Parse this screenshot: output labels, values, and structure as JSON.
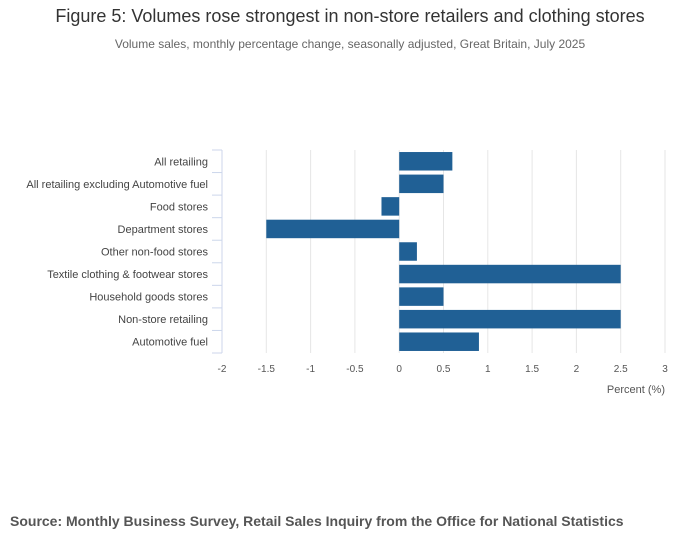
{
  "chart_data": {
    "type": "bar",
    "orientation": "horizontal",
    "title": "Figure 5: Volumes rose strongest in non-store retailers and clothing stores",
    "subtitle": "Volume sales, monthly percentage change, seasonally adjusted, Great Britain, July 2025",
    "categories": [
      "All retailing",
      "All retailing excluding Automotive fuel",
      "Food stores",
      "Department stores",
      "Other non-food stores",
      "Textile clothing & footwear stores",
      "Household goods stores",
      "Non-store retailing",
      "Automotive fuel"
    ],
    "values": [
      0.6,
      0.5,
      -0.2,
      -1.5,
      0.2,
      2.5,
      0.5,
      2.5,
      0.9
    ],
    "xlabel": "Percent (%)",
    "ylabel": "",
    "xlim": [
      -2,
      3
    ],
    "xticks": [
      -2,
      -1.5,
      -1,
      -0.5,
      0,
      0.5,
      1,
      1.5,
      2,
      2.5,
      3
    ],
    "xtick_labels": [
      "-2",
      "-1.5",
      "-1",
      "-0.5",
      "0",
      "0.5",
      "1",
      "1.5",
      "2",
      "2.5",
      "3"
    ],
    "grid": true,
    "bar_color": "#206095"
  },
  "source": "Source: Monthly Business Survey, Retail Sales Inquiry from the Office for National Statistics"
}
